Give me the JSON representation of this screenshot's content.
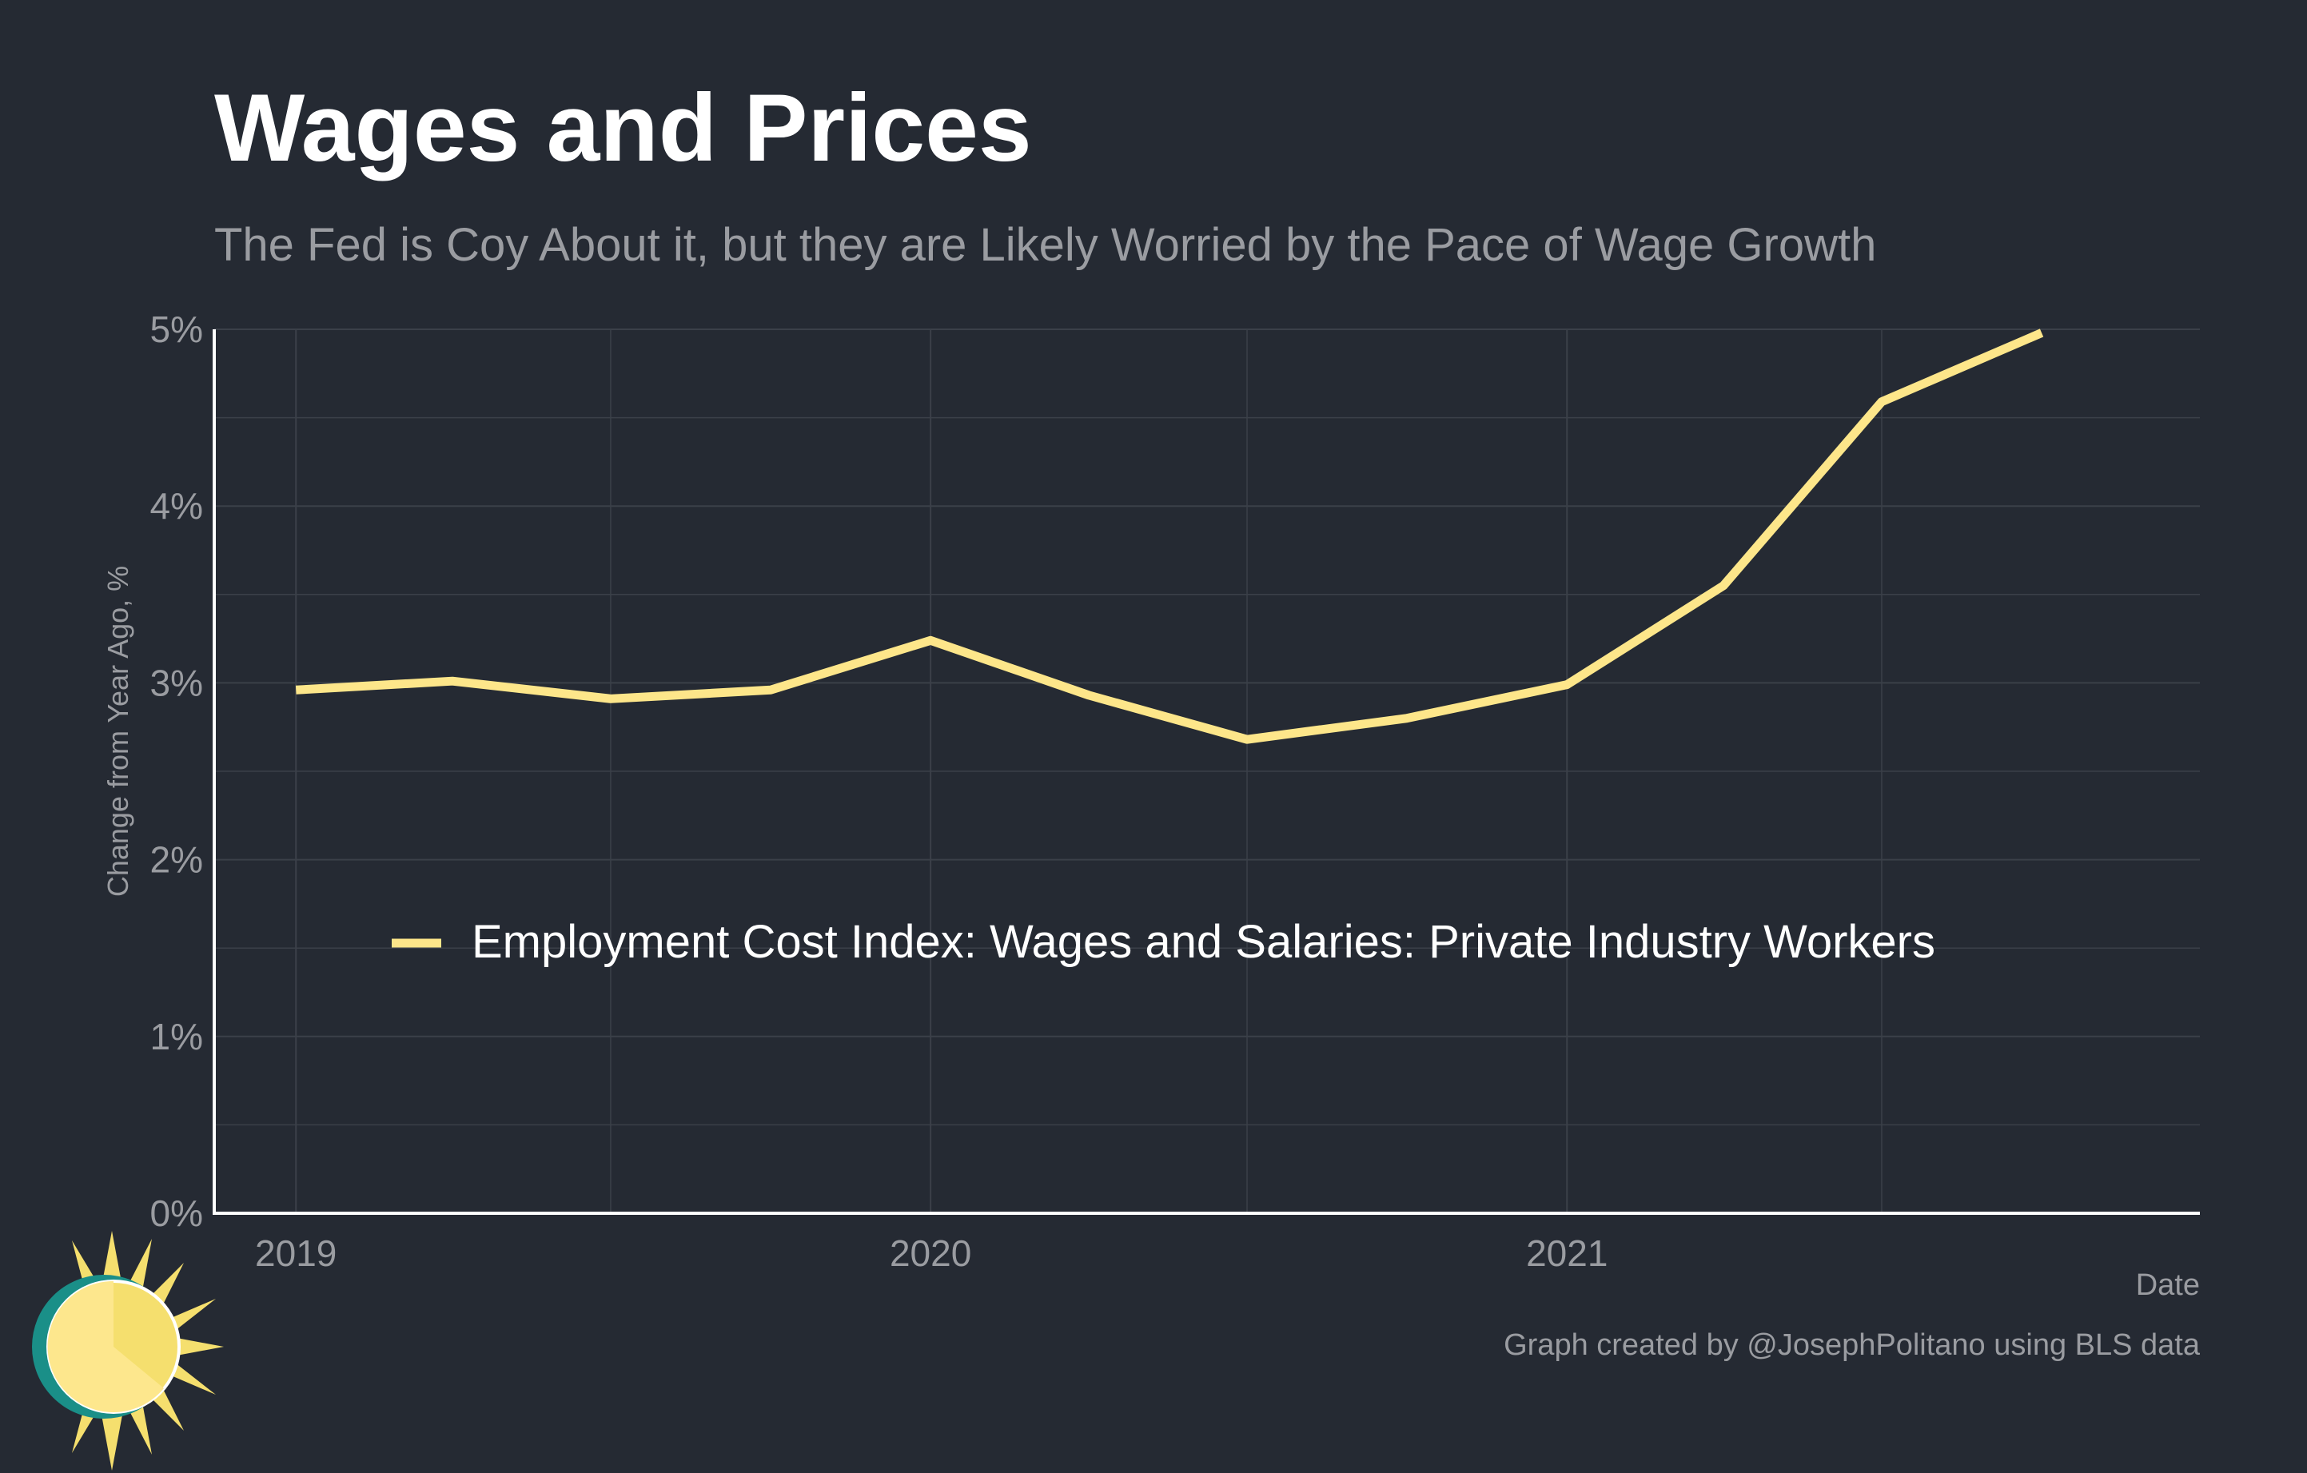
{
  "header": {
    "title": "Wages and Prices",
    "subtitle": "The Fed is Coy About it, but they are Likely Worried by the Pace of Wage Growth"
  },
  "footer": {
    "caption": "Graph created by @JosephPolitano using BLS data"
  },
  "logo": {
    "icon": "sun-logo-icon",
    "colors": {
      "ring": "#1a8f88",
      "rays": "#f5df6e",
      "disc": "#fde78d"
    }
  },
  "chart_data": {
    "type": "line",
    "xlabel": "Date",
    "ylabel": "Change from Year Ago, %",
    "ylim": [
      0,
      5
    ],
    "xlim": [
      "2018-11-15",
      "2021-12-31"
    ],
    "y_ticks": [
      0,
      1,
      2,
      3,
      4,
      5
    ],
    "y_tick_labels": [
      "0%",
      "1%",
      "2%",
      "3%",
      "4%",
      "5%"
    ],
    "x_ticks": [
      "2019-01-01",
      "2020-01-01",
      "2021-01-01"
    ],
    "x_tick_labels": [
      "2019",
      "2020",
      "2021"
    ],
    "grid": true,
    "legend_position": "inside-center",
    "colors": {
      "background": "#252a33",
      "grid": "#3b4049",
      "axis": "#ffffff",
      "tick_label": "#9a9ca1",
      "legend_text": "#ffffff"
    },
    "series": [
      {
        "name": "Employment Cost Index: Wages and Salaries: Private Industry Workers",
        "color": "#fde68a",
        "x": [
          "2019-01-01",
          "2019-04-01",
          "2019-07-01",
          "2019-10-01",
          "2020-01-01",
          "2020-04-01",
          "2020-07-01",
          "2020-10-01",
          "2021-01-01",
          "2021-04-01",
          "2021-07-01",
          "2021-10-01"
        ],
        "values": [
          2.96,
          3.01,
          2.91,
          2.96,
          3.24,
          2.93,
          2.68,
          2.8,
          2.99,
          3.55,
          4.59,
          4.98
        ]
      }
    ]
  }
}
